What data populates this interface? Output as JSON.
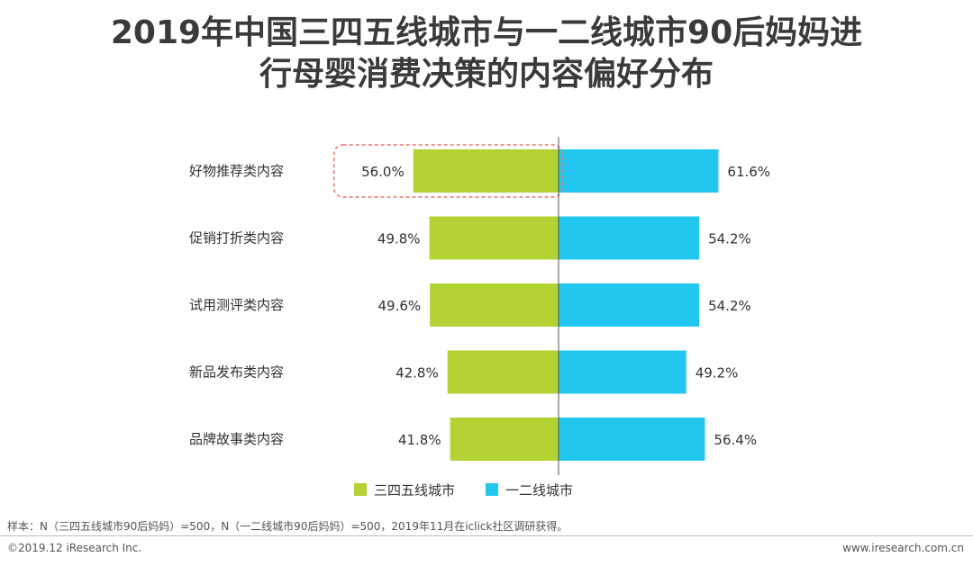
{
  "title_line1": "2019年中国三四五线城市与一二线城市90后妈妈进",
  "title_line2": "行母婴消费决策的内容偏好分布",
  "chart_data": {
    "type": "bar",
    "orientation": "horizontal-diverging",
    "categories": [
      "好物推荐类内容",
      "促销打折类内容",
      "试用测评类内容",
      "新品发布类内容",
      "品牌故事类内容"
    ],
    "series": [
      {
        "name": "三四五线城市",
        "color": "#b3d233",
        "direction": "left",
        "values": [
          56.0,
          49.8,
          49.6,
          42.8,
          41.8
        ]
      },
      {
        "name": "一二线城市",
        "color": "#22c7f0",
        "direction": "right",
        "values": [
          61.6,
          54.2,
          54.2,
          49.2,
          56.4
        ]
      }
    ],
    "value_suffix": "%",
    "highlight": {
      "series": 0,
      "index": 0,
      "style": "dashed-red-box"
    },
    "legend_position": "bottom-center",
    "grid": false
  },
  "note": "样本：N（三四五线城市90后妈妈）=500，N（一二线城市90后妈妈）=500，2019年11月在iclick社区调研获得。",
  "footer": {
    "copyright": "©2019.12 iResearch Inc.",
    "website": "www.iresearch.com.cn"
  }
}
